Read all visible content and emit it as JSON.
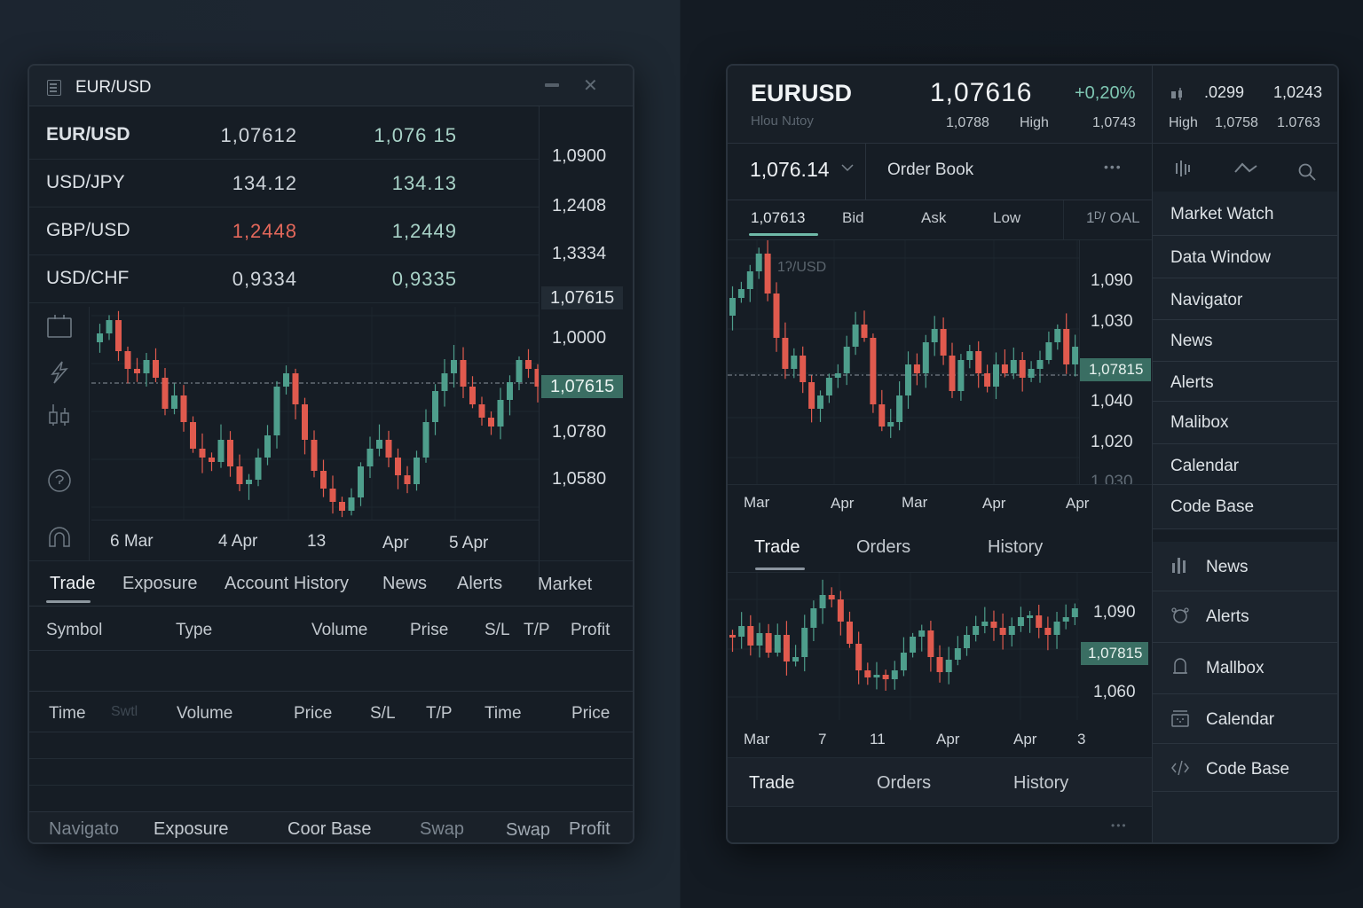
{
  "left_window": {
    "title": "EUR/USD",
    "quotes": [
      {
        "symbol": "EUR/USD",
        "bid": "1,07612",
        "ask": "1,076 15",
        "bid_direction": "neutral"
      },
      {
        "symbol": "USD/JPY",
        "bid": "134.12",
        "ask": "134.13",
        "bid_direction": "neutral"
      },
      {
        "symbol": "GBP/USD",
        "bid": "1,2448",
        "ask": "1,2449",
        "bid_direction": "down"
      },
      {
        "symbol": "USD/CHF",
        "bid": "0,9334",
        "ask": "0,9335",
        "bid_direction": "neutral"
      }
    ],
    "price_axis": [
      "1,0900",
      "1,2408",
      "1,3334",
      "1,07615",
      "1,0000",
      "1,07615",
      "1,0780",
      "1,0580"
    ],
    "current_price_badge": "1,07615",
    "x_axis": [
      "6 Mar",
      "4 Apr",
      "13",
      "Apr",
      "5 Apr"
    ],
    "tabs": [
      "Trade",
      "Exposure",
      "Account History",
      "News",
      "Alerts",
      "Market"
    ],
    "active_tab": "Trade",
    "table1_headers": [
      "Symbol",
      "Type",
      "Volume",
      "Prise",
      "S/L",
      "T/P",
      "Profit"
    ],
    "table2_headers": [
      "Time",
      "Swtl",
      "Volume",
      "Price",
      "S/L",
      "T/P",
      "Time",
      "Price"
    ],
    "bottom_tabs": [
      "Navigato",
      "Exposure",
      "Coor Base",
      "Swap",
      "Swap",
      "Profit"
    ]
  },
  "right_window": {
    "symbol": "EURUSD",
    "subtitle": "Hlou Nɹtoy",
    "price": "1,07616",
    "change": "+0,20%",
    "stats_row": {
      "low": "1,0788",
      "high_label": "High",
      "high": "1,0743"
    },
    "side_stats": {
      "v1": ".0299",
      "v2": "1,0243",
      "high_label": "High",
      "v3": "1,0758",
      "v4": "1.0763"
    },
    "selector_value": "1,076.14",
    "order_book_label": "Order Book",
    "more_label": "•••",
    "sub_tabs": [
      "1,07613",
      "Bid",
      "Ask",
      "Low",
      "1ᴰ/ OAL"
    ],
    "chart1": {
      "watermark": "1ʔ/USD",
      "price_axis": [
        "1,090",
        "1,030",
        "1,07815",
        "1,040",
        "1,020",
        "1,030"
      ],
      "badge": "1,07815",
      "x_axis": [
        "Mar",
        "Apr",
        "Mar",
        "Apr",
        "Apr"
      ]
    },
    "tabs": [
      "Trade",
      "Orders",
      "History"
    ],
    "active_tab": "Trade",
    "chart2": {
      "price_axis": [
        "1,090",
        "1,07815",
        "1,060"
      ],
      "badge": "1,07815",
      "x_axis": [
        "Mar",
        "7",
        "11",
        "Apr",
        "Apr",
        "3"
      ]
    },
    "bottom_tabs": [
      "Trade",
      "Orders",
      "History"
    ],
    "footer_more": "•••",
    "side_menu": [
      "Market Watch",
      "Data Window",
      "Navigator",
      "News",
      "Alerts",
      "Malibox",
      "Calendar",
      "Code Base"
    ],
    "side_menu2": [
      {
        "label": "News",
        "icon": "bar-chart-icon"
      },
      {
        "label": "Alerts",
        "icon": "alarm-icon"
      },
      {
        "label": "Mallbox",
        "icon": "bell-icon"
      },
      {
        "label": "Calendar",
        "icon": "calendar-icon"
      },
      {
        "label": "Code Base",
        "icon": "code-icon"
      }
    ]
  },
  "colors": {
    "up": "#4e9e8c",
    "down": "#e05a4e",
    "badge": "#3a6e63",
    "panel": "#161d25"
  }
}
